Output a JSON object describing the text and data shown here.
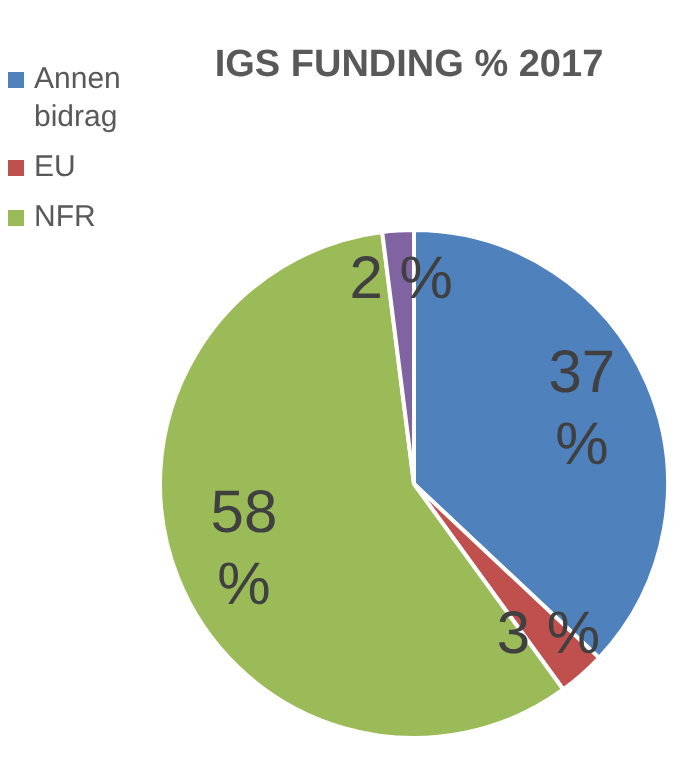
{
  "chart_data": {
    "type": "pie",
    "title": "IGS FUNDING % 2017",
    "categories": [
      "Annen bidrag",
      "EU",
      "NFR",
      null
    ],
    "values": [
      37,
      3,
      58,
      2
    ],
    "colors": [
      "#4f81bd",
      "#c0504d",
      "#9bbb59",
      "#8064a2"
    ],
    "value_labels": [
      "37 %",
      "3 %",
      "58 %",
      "2 %"
    ],
    "legend": "top left"
  }
}
